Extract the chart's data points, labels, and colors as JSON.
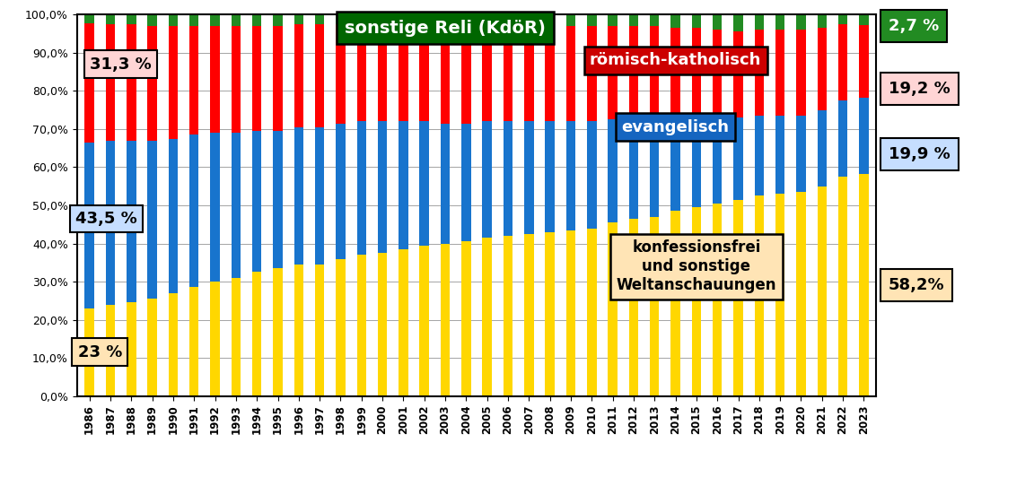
{
  "years": [
    1986,
    1987,
    1988,
    1989,
    1990,
    1991,
    1992,
    1993,
    1994,
    1995,
    1996,
    1997,
    1998,
    1999,
    2000,
    2001,
    2002,
    2003,
    2004,
    2005,
    2006,
    2007,
    2008,
    2009,
    2010,
    2011,
    2012,
    2013,
    2014,
    2015,
    2016,
    2017,
    2018,
    2019,
    2020,
    2021,
    2022,
    2023
  ],
  "konfessionsfrei": [
    23.0,
    24.0,
    24.5,
    25.5,
    27.0,
    28.5,
    30.0,
    31.0,
    32.5,
    33.5,
    34.5,
    34.5,
    36.0,
    37.0,
    37.5,
    38.5,
    39.5,
    40.0,
    40.5,
    41.5,
    42.0,
    42.5,
    43.0,
    43.5,
    44.0,
    45.5,
    46.5,
    47.0,
    48.5,
    49.5,
    50.5,
    51.5,
    52.5,
    53.0,
    53.5,
    55.0,
    57.5,
    58.2
  ],
  "evangelisch": [
    43.5,
    43.0,
    42.5,
    41.5,
    40.5,
    40.0,
    39.0,
    38.0,
    37.0,
    36.0,
    36.0,
    36.0,
    35.5,
    35.0,
    34.5,
    33.5,
    32.5,
    31.5,
    31.0,
    30.5,
    30.0,
    29.5,
    29.0,
    28.5,
    28.0,
    27.0,
    26.5,
    26.0,
    24.5,
    23.5,
    22.0,
    21.5,
    21.0,
    20.5,
    20.0,
    20.0,
    19.9,
    19.9
  ],
  "roemisch_katholisch": [
    31.3,
    30.5,
    30.5,
    30.0,
    29.5,
    28.5,
    28.0,
    28.0,
    27.5,
    27.5,
    27.0,
    27.0,
    26.0,
    25.5,
    25.0,
    25.0,
    25.0,
    25.5,
    25.5,
    25.0,
    25.0,
    25.0,
    25.0,
    25.0,
    25.0,
    24.5,
    24.0,
    24.0,
    23.5,
    23.5,
    23.5,
    22.5,
    22.5,
    22.5,
    22.5,
    21.5,
    20.0,
    19.2
  ],
  "sonstige": [
    2.2,
    2.5,
    2.5,
    3.0,
    3.0,
    3.0,
    3.0,
    3.0,
    3.0,
    3.0,
    2.5,
    2.5,
    2.5,
    2.5,
    3.0,
    3.0,
    3.0,
    3.0,
    3.0,
    3.0,
    3.0,
    3.0,
    3.0,
    3.0,
    3.0,
    3.0,
    3.0,
    3.0,
    3.5,
    3.5,
    4.0,
    4.5,
    4.0,
    4.0,
    4.0,
    3.5,
    2.6,
    2.7
  ],
  "color_konfessionsfrei": "#FFD700",
  "color_evangelisch": "#1874CD",
  "color_roemisch_katholisch": "#FF0000",
  "color_sonstige": "#228B22",
  "bar_width": 0.45,
  "background_color": "#FFFFFF",
  "ann_sonstige_text": "sonstige Reli (KdöR)",
  "ann_roemisch_text": "römisch-katholisch",
  "ann_evangelisch_text": "evangelisch",
  "ann_konfessions_text": "konfessionsfrei\nund sonstige\nWeltanschauungen",
  "right_sonstige_text": "2,7 %",
  "right_roemisch_text": "19,2 %",
  "right_evangelisch_text": "19,9 %",
  "right_konfessions_text": "58,2%",
  "left_konfessions_text": "23 %",
  "left_evangelisch_text": "43,5 %",
  "left_roemisch_text": "31,3 %"
}
